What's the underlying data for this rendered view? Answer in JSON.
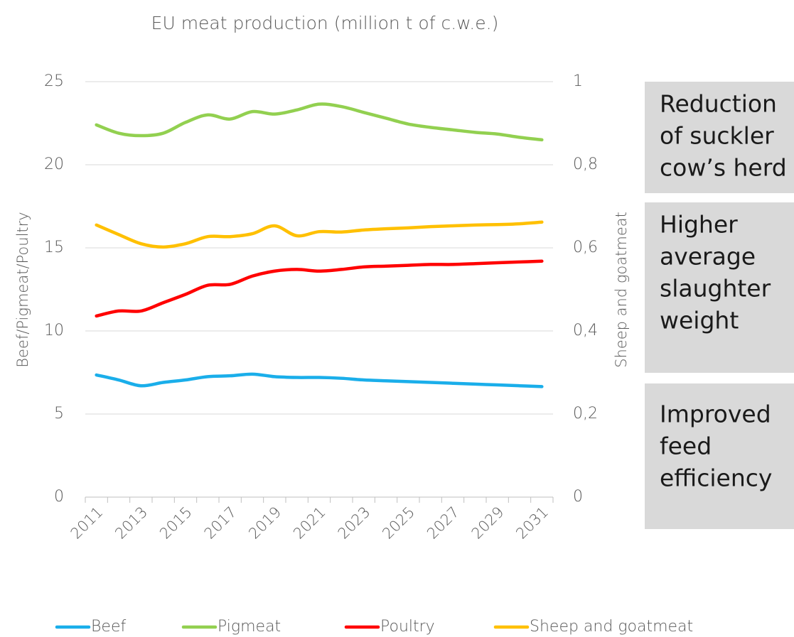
{
  "chart_data": {
    "type": "line",
    "title": "EU meat production (million t of c.w.e.)",
    "y_label": "Beef/Pigmeat/Poultry",
    "y2_label": "Sheep and goatmeat",
    "categories": [
      "2011",
      null,
      "2013",
      null,
      "2015",
      null,
      "2017",
      null,
      "2019",
      null,
      "2021",
      null,
      "2023",
      null,
      "2025",
      null,
      "2027",
      null,
      "2029",
      null,
      "2031"
    ],
    "series": [
      {
        "name": "Beef",
        "color": "#1aaeea",
        "values": [
          7.35,
          7.05,
          6.7,
          6.9,
          7.05,
          7.25,
          7.3,
          7.4,
          7.25,
          7.2,
          7.2,
          7.15,
          7.05,
          7.0,
          6.95,
          6.9,
          6.85,
          6.8,
          6.75,
          6.7,
          6.65
        ]
      },
      {
        "name": "Pigmeat",
        "color": "#92d050",
        "values": [
          22.4,
          21.9,
          21.75,
          21.9,
          22.55,
          23.0,
          22.75,
          23.2,
          23.05,
          23.3,
          23.65,
          23.5,
          23.15,
          22.8,
          22.45,
          22.25,
          22.1,
          21.95,
          21.85,
          21.65,
          21.5
        ]
      },
      {
        "name": "Poultry",
        "color": "#ff0000",
        "values": [
          10.9,
          11.2,
          11.2,
          11.7,
          12.2,
          12.75,
          12.8,
          13.3,
          13.6,
          13.7,
          13.6,
          13.7,
          13.85,
          13.9,
          13.95,
          14.0,
          14.0,
          14.05,
          14.1,
          14.15,
          14.2
        ]
      },
      {
        "name": "Sheep and goatmeat",
        "color": "#ffc000",
        "axis": "y2",
        "values": [
          0.655,
          0.632,
          0.61,
          0.602,
          0.61,
          0.627,
          0.627,
          0.634,
          0.653,
          0.629,
          0.639,
          0.638,
          0.643,
          0.646,
          0.648,
          0.651,
          0.653,
          0.655,
          0.656,
          0.658,
          0.662
        ]
      }
    ],
    "ylim": [
      0,
      25
    ],
    "yticks": [
      0,
      5,
      10,
      15,
      20,
      25
    ],
    "y2lim": [
      0,
      1
    ],
    "y2ticks": [
      0,
      {
        "value": 0.2,
        "label": "0,2"
      },
      {
        "value": 0.4,
        "label": "0,4"
      },
      {
        "value": 0.6,
        "label": "0,6"
      },
      {
        "value": 0.8,
        "label": "0,8"
      },
      1
    ],
    "grid": true,
    "legend": "bottom",
    "annotations": [
      [
        "Reduction",
        "of suckler",
        "cow’s herd"
      ],
      [
        "Higher",
        "average",
        "slaughter",
        "weight"
      ],
      [
        "Improved",
        "feed",
        "efficiency"
      ]
    ]
  }
}
